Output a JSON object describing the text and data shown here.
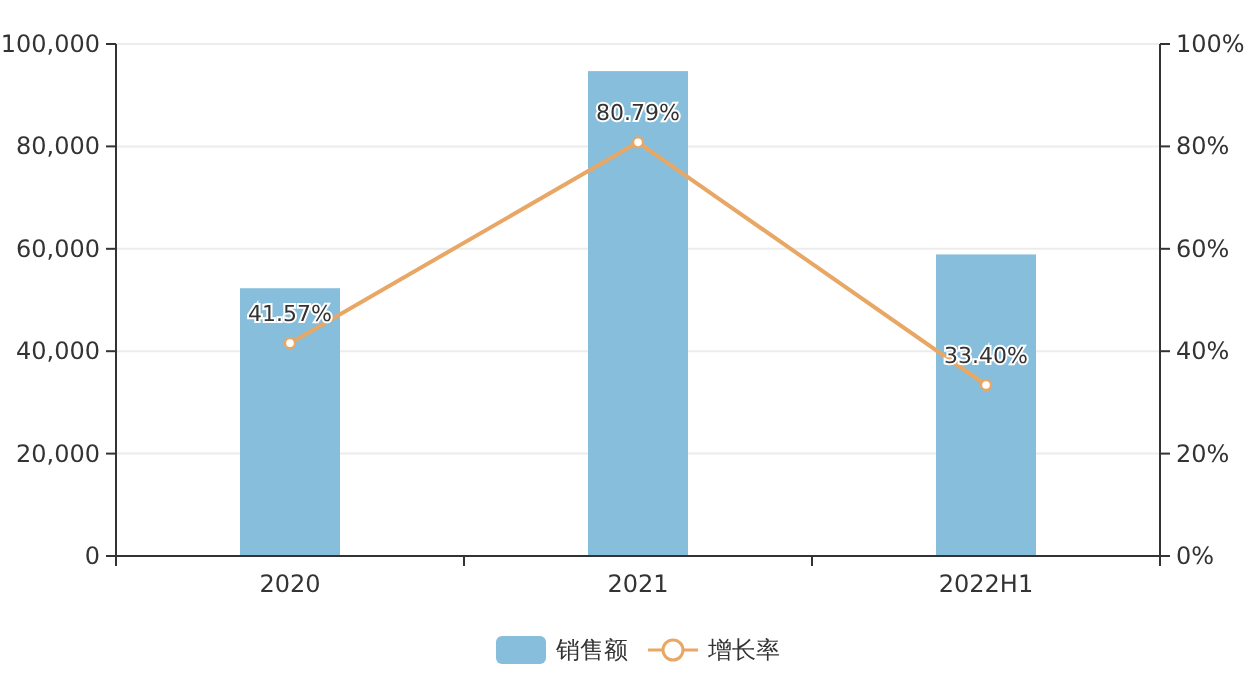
{
  "chart_data": {
    "type": "bar",
    "categories": [
      "2020",
      "2021",
      "2022H1"
    ],
    "series": [
      {
        "name": "销售额",
        "color": "#86bedb",
        "values": [
          52300,
          94700,
          58900
        ]
      },
      {
        "name": "增长率",
        "type": "line",
        "axis": "y2",
        "color": "#e8a764",
        "marker": "circle",
        "values": [
          41.57,
          80.79,
          33.4
        ],
        "value_labels": [
          "41.57%",
          "80.79%",
          "33.40%"
        ]
      }
    ],
    "ylim": [
      0,
      100000
    ],
    "yticks": [
      0,
      {
        "value": 20000,
        "label": "20,000"
      },
      {
        "value": 40000,
        "label": "40,000"
      },
      {
        "value": 60000,
        "label": "60,000"
      },
      {
        "value": 80000,
        "label": "80,000"
      },
      {
        "value": 100000,
        "label": "100,000"
      }
    ],
    "y2lim": [
      0,
      100
    ],
    "y2ticks": [
      {
        "value": 0,
        "label": "0%"
      },
      {
        "value": 20,
        "label": "20%"
      },
      {
        "value": 40,
        "label": "40%"
      },
      {
        "value": 60,
        "label": "60%"
      },
      {
        "value": 80,
        "label": "80%"
      },
      {
        "value": 100,
        "label": "100%"
      }
    ],
    "grid": "y",
    "legend": "bottom"
  }
}
